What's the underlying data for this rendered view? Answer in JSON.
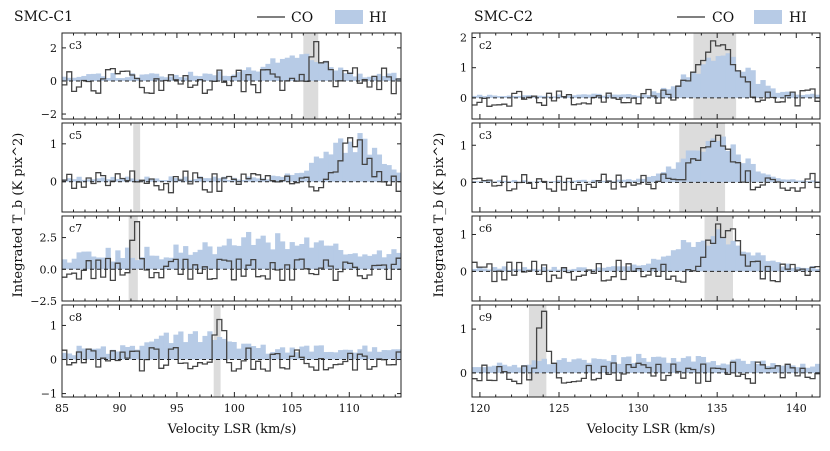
{
  "chart_data": {
    "type": "line",
    "xlabel": "Velocity LSR (km/s)",
    "ylabel": "Integrated T_b (K pix^2)",
    "legend": {
      "co": "CO",
      "hi": "HI",
      "placement": "top-right"
    },
    "groups": [
      {
        "title": "SMC-C1",
        "xlim": [
          85,
          114.5
        ],
        "xticks": [
          85,
          90,
          95,
          100,
          105,
          110
        ],
        "panels": [
          {
            "label": "c3",
            "ylim": [
              -2.3,
              2.9
            ],
            "yticks": [
              -2,
              0,
              2
            ],
            "ytick_labels": [
              "−2",
              "0",
              "2"
            ],
            "band": [
              106,
              107.3
            ],
            "peak_v": 107,
            "peak_amp": 2.1,
            "width": 0.5,
            "hi_base": 0.4,
            "hi_bump": 1.2,
            "hi_center": 105,
            "hi_width": 2.5,
            "noise": 0.8,
            "seed": 11
          },
          {
            "label": "c5",
            "ylim": [
              -0.8,
              1.55
            ],
            "yticks": [
              0,
              1
            ],
            "ytick_labels": [
              "0",
              "1"
            ],
            "band": [
              91.2,
              91.8
            ],
            "peak_v": 110,
            "peak_amp": 1.0,
            "width": 1.2,
            "hi_base": 0.1,
            "hi_bump": 1.0,
            "hi_center": 110,
            "hi_width": 2.5,
            "noise": 0.3,
            "seed": 23
          },
          {
            "label": "c7",
            "ylim": [
              -2.5,
              4.2
            ],
            "yticks": [
              -2.5,
              0,
              2.5
            ],
            "ytick_labels": [
              "−2.5",
              "0.0",
              "2.5"
            ],
            "band": [
              90.8,
              91.6
            ],
            "peak_v": 91.2,
            "peak_amp": 3.2,
            "width": 0.4,
            "hi_base": 1.2,
            "hi_bump": 1.2,
            "hi_center": 103,
            "hi_width": 5,
            "noise": 0.9,
            "seed": 37
          },
          {
            "label": "c8",
            "ylim": [
              -1.1,
              1.6
            ],
            "yticks": [
              -1,
              0,
              1
            ],
            "ytick_labels": [
              "−1",
              "0",
              "1"
            ],
            "band": [
              98.2,
              98.8
            ],
            "peak_v": 98.5,
            "peak_amp": 1.3,
            "width": 0.3,
            "hi_base": 0.3,
            "hi_bump": 0.5,
            "hi_center": 96,
            "hi_width": 3,
            "noise": 0.35,
            "seed": 41
          }
        ]
      },
      {
        "title": "SMC-C2",
        "xlim": [
          119.5,
          141.5
        ],
        "xticks": [
          120,
          125,
          130,
          135,
          140
        ],
        "panels": [
          {
            "label": "c2",
            "ylim": [
              -0.7,
              2.15
            ],
            "yticks": [
              0,
              1,
              2
            ],
            "ytick_labels": [
              "0",
              "1",
              "2"
            ],
            "band": [
              133.5,
              136.2
            ],
            "peak_v": 134.8,
            "peak_amp": 1.7,
            "width": 1.2,
            "hi_base": 0.1,
            "hi_bump": 1.3,
            "hi_center": 135,
            "hi_width": 1.8,
            "noise": 0.3,
            "seed": 53
          },
          {
            "label": "c3",
            "ylim": [
              -0.8,
              1.6
            ],
            "yticks": [
              0,
              1
            ],
            "ytick_labels": [
              "0",
              "1"
            ],
            "band": [
              132.6,
              135.5
            ],
            "peak_v": 134.5,
            "peak_amp": 1.2,
            "width": 1.0,
            "hi_base": 0.05,
            "hi_bump": 1.1,
            "hi_center": 134.5,
            "hi_width": 1.8,
            "noise": 0.25,
            "seed": 67
          },
          {
            "label": "c6",
            "ylim": [
              -0.8,
              1.5
            ],
            "yticks": [
              0,
              1
            ],
            "ytick_labels": [
              "0",
              "1"
            ],
            "band": [
              134.2,
              136.0
            ],
            "peak_v": 135.2,
            "peak_amp": 1.2,
            "width": 0.8,
            "hi_base": 0.1,
            "hi_bump": 0.9,
            "hi_center": 134.5,
            "hi_width": 2.2,
            "noise": 0.3,
            "seed": 79
          },
          {
            "label": "c9",
            "ylim": [
              -0.55,
              1.55
            ],
            "yticks": [
              0,
              1
            ],
            "ytick_labels": [
              "0",
              "1"
            ],
            "band": [
              123.1,
              124.2
            ],
            "peak_v": 123.8,
            "peak_amp": 1.4,
            "width": 0.3,
            "hi_base": 0.15,
            "hi_bump": 0.2,
            "hi_center": 130,
            "hi_width": 6,
            "noise": 0.25,
            "seed": 97
          }
        ]
      }
    ]
  }
}
